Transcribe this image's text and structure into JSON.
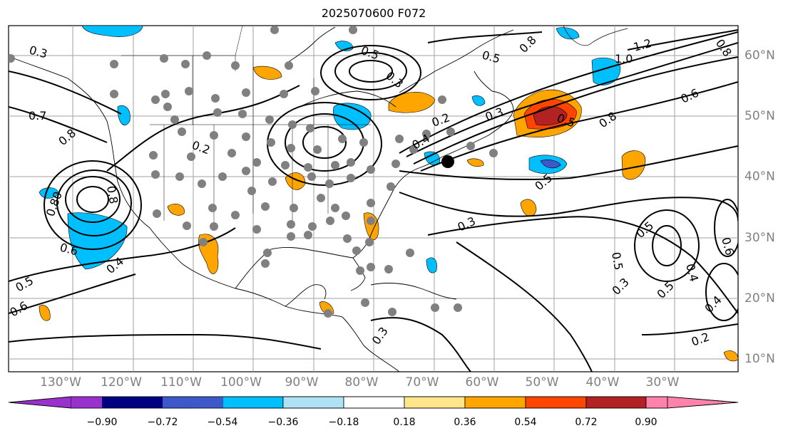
{
  "title": "2025070600 F072",
  "map": {
    "lon_ticks": [
      "130°W",
      "120°W",
      "110°W",
      "100°W",
      "90°W",
      "80°W",
      "70°W",
      "60°W",
      "50°W",
      "40°W",
      "30°W"
    ],
    "lat_ticks": [
      "60°N",
      "50°N",
      "40°N",
      "30°N",
      "20°N",
      "10°N"
    ],
    "contour_labels": [
      "0.3",
      "0.7",
      "0.8",
      "0.2",
      "0.8",
      "0.80",
      "0.6",
      "0.4",
      "0.5",
      "0.6",
      "0.3",
      "0.5",
      "0.2",
      "0.4",
      "0.3",
      "0.5",
      "0.8",
      "1.0",
      "1.2",
      "0.6",
      "0.8",
      "0.5",
      "0.5",
      "0.3",
      "0.5",
      "0.5",
      "0.3",
      "0.5",
      "0.4",
      "0.6",
      "0.2",
      "0.3",
      "0.4",
      "0.8"
    ],
    "marker": "black-dot"
  },
  "colorbar": {
    "tick_labels": [
      "−0.90",
      "−0.72",
      "−0.54",
      "−0.36",
      "−0.18",
      "0.18",
      "0.36",
      "0.54",
      "0.72",
      "0.90"
    ],
    "colors": [
      "#9932cc",
      "#000080",
      "#3d58c9",
      "#00bfff",
      "#aee3f5",
      "#ffffff",
      "#ffe68a",
      "#ffa500",
      "#ff4500",
      "#b22222",
      "#ff82ab"
    ]
  }
}
